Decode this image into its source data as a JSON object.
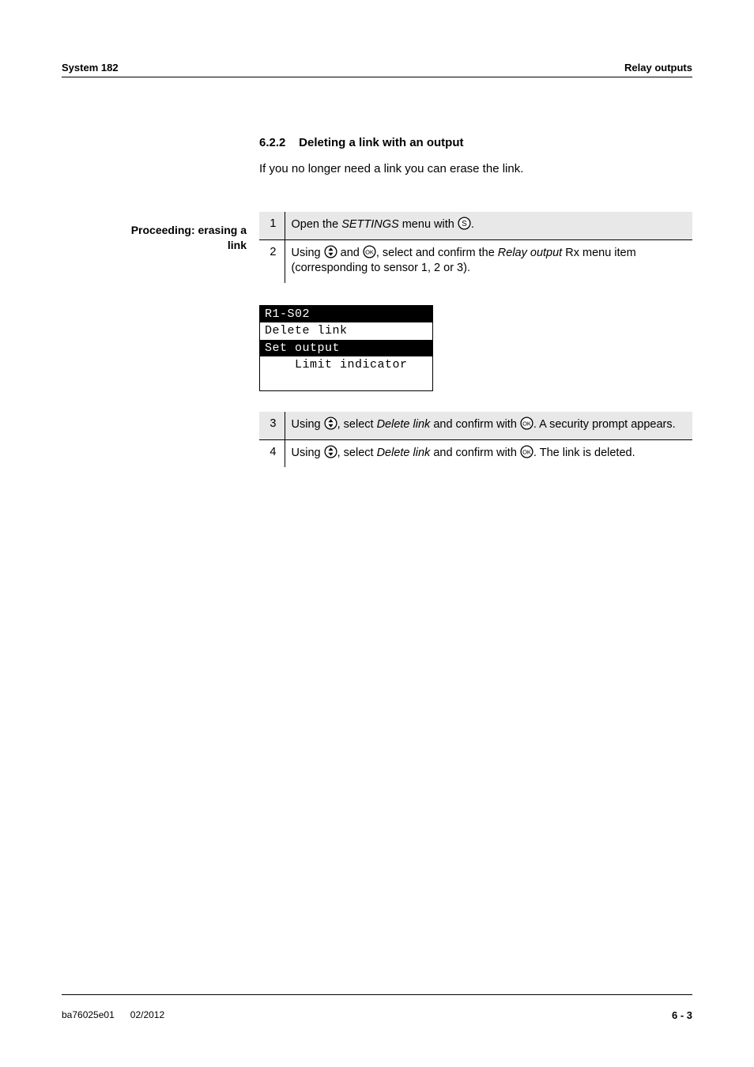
{
  "header": {
    "left": "System 182",
    "right": "Relay outputs"
  },
  "section": {
    "number": "6.2.2",
    "title": "Deleting a link with an output"
  },
  "intro": "If you no longer need a link you can erase the link.",
  "sideLabel": {
    "line1": "Proceeding: erasing a",
    "line2": "link"
  },
  "icons": {
    "s_letter": "S",
    "ok_letter": "OK",
    "circle_stroke": "#000000",
    "circle_fill": "#ffffff",
    "arrow_fill": "#000000"
  },
  "stepsA": [
    {
      "n": "1",
      "parts": [
        {
          "t": "text",
          "v": "Open the "
        },
        {
          "t": "italic",
          "v": "SETTINGS"
        },
        {
          "t": "text",
          "v": " menu with "
        },
        {
          "t": "icon",
          "v": "s"
        },
        {
          "t": "text",
          "v": "."
        }
      ],
      "shaded": true,
      "ruled": false
    },
    {
      "n": "2",
      "parts": [
        {
          "t": "text",
          "v": "Using "
        },
        {
          "t": "icon",
          "v": "updown"
        },
        {
          "t": "text",
          "v": " and "
        },
        {
          "t": "icon",
          "v": "ok"
        },
        {
          "t": "text",
          "v": ", select and confirm the "
        },
        {
          "t": "italic",
          "v": "Relay output"
        },
        {
          "t": "text",
          "v": " Rx menu item (corresponding to sensor 1, 2 or 3)."
        }
      ],
      "shaded": false,
      "ruled": true
    }
  ],
  "lcd": {
    "rows": [
      {
        "text": "R1-S02",
        "inv": true
      },
      {
        "text": "Delete link",
        "inv": false
      },
      {
        "text": "Set output",
        "inv": true
      },
      {
        "text": "    Limit indicator",
        "inv": false
      },
      {
        "text": " ",
        "inv": false
      }
    ]
  },
  "stepsB": [
    {
      "n": "3",
      "parts": [
        {
          "t": "text",
          "v": "Using "
        },
        {
          "t": "icon",
          "v": "updown"
        },
        {
          "t": "text",
          "v": ", select "
        },
        {
          "t": "italic",
          "v": "Delete link "
        },
        {
          "t": "text",
          "v": " and confirm with "
        },
        {
          "t": "icon",
          "v": "ok"
        },
        {
          "t": "text",
          "v": ". A security prompt appears."
        }
      ],
      "shaded": true,
      "ruled": false
    },
    {
      "n": "4",
      "parts": [
        {
          "t": "text",
          "v": "Using "
        },
        {
          "t": "icon",
          "v": "updown"
        },
        {
          "t": "text",
          "v": ", select "
        },
        {
          "t": "italic",
          "v": "Delete link "
        },
        {
          "t": "text",
          "v": " and confirm with "
        },
        {
          "t": "icon",
          "v": "ok"
        },
        {
          "t": "text",
          "v": ". The link is deleted."
        }
      ],
      "shaded": false,
      "ruled": true
    }
  ],
  "footer": {
    "doc": "ba76025e01",
    "date": "02/2012",
    "page": "6 - 3"
  },
  "colors": {
    "shaded_bg": "#e8e8e8",
    "rule": "#000000",
    "text": "#000000",
    "bg": "#ffffff"
  }
}
